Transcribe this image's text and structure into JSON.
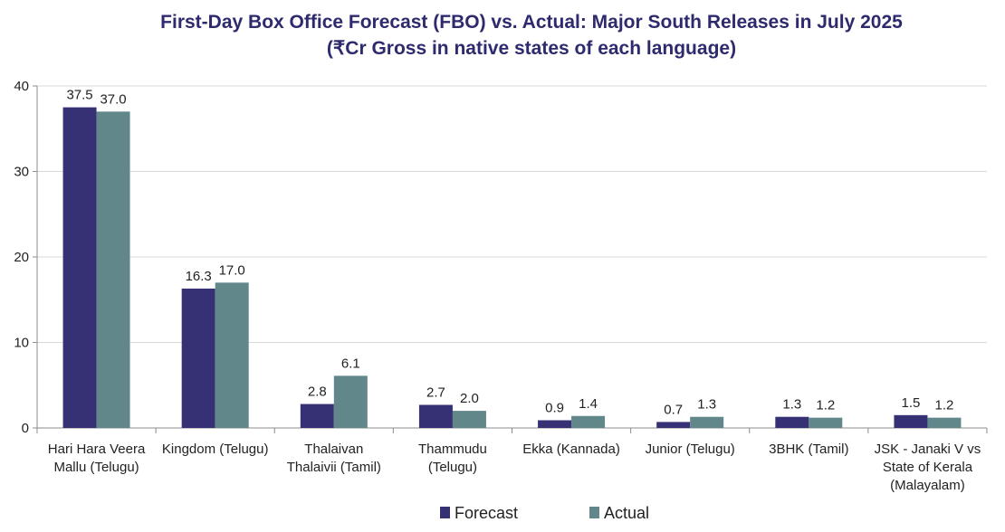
{
  "chart_data": {
    "type": "bar",
    "title_lines": [
      "First-Day Box Office Forecast (FBO) vs. Actual: Major South Releases in July 2025",
      "(₹Cr Gross in native states of each language)"
    ],
    "categories": [
      [
        "Hari Hara Veera",
        "Mallu (Telugu)"
      ],
      [
        "Kingdom (Telugu)"
      ],
      [
        "Thalaivan",
        "Thalaivii (Tamil)"
      ],
      [
        "Thammudu",
        "(Telugu)"
      ],
      [
        "Ekka (Kannada)"
      ],
      [
        "Junior (Telugu)"
      ],
      [
        "3BHK (Tamil)"
      ],
      [
        "JSK - Janaki V vs",
        "State of Kerala",
        "(Malayalam)"
      ]
    ],
    "series": [
      {
        "name": "Forecast",
        "color": "#363174",
        "values": [
          37.5,
          16.3,
          2.8,
          2.7,
          0.9,
          0.7,
          1.3,
          1.5
        ],
        "labels": [
          "37.5",
          "16.3",
          "2.8",
          "2.7",
          "0.9",
          "0.7",
          "1.3",
          "1.5"
        ]
      },
      {
        "name": "Actual",
        "color": "#61878b",
        "values": [
          37.0,
          17.0,
          6.1,
          2.0,
          1.4,
          1.3,
          1.2,
          1.2
        ],
        "labels": [
          "37.0",
          "17.0",
          "6.1",
          "2.0",
          "1.4",
          "1.3",
          "1.2",
          "1.2"
        ]
      }
    ],
    "ylim": [
      0,
      40
    ],
    "yticks": [
      0,
      10,
      20,
      30,
      40
    ],
    "ytick_labels": [
      "0",
      "10",
      "20",
      "30",
      "40"
    ],
    "grid": true,
    "legend_position": "bottom-center",
    "xlabel": "",
    "ylabel": ""
  }
}
